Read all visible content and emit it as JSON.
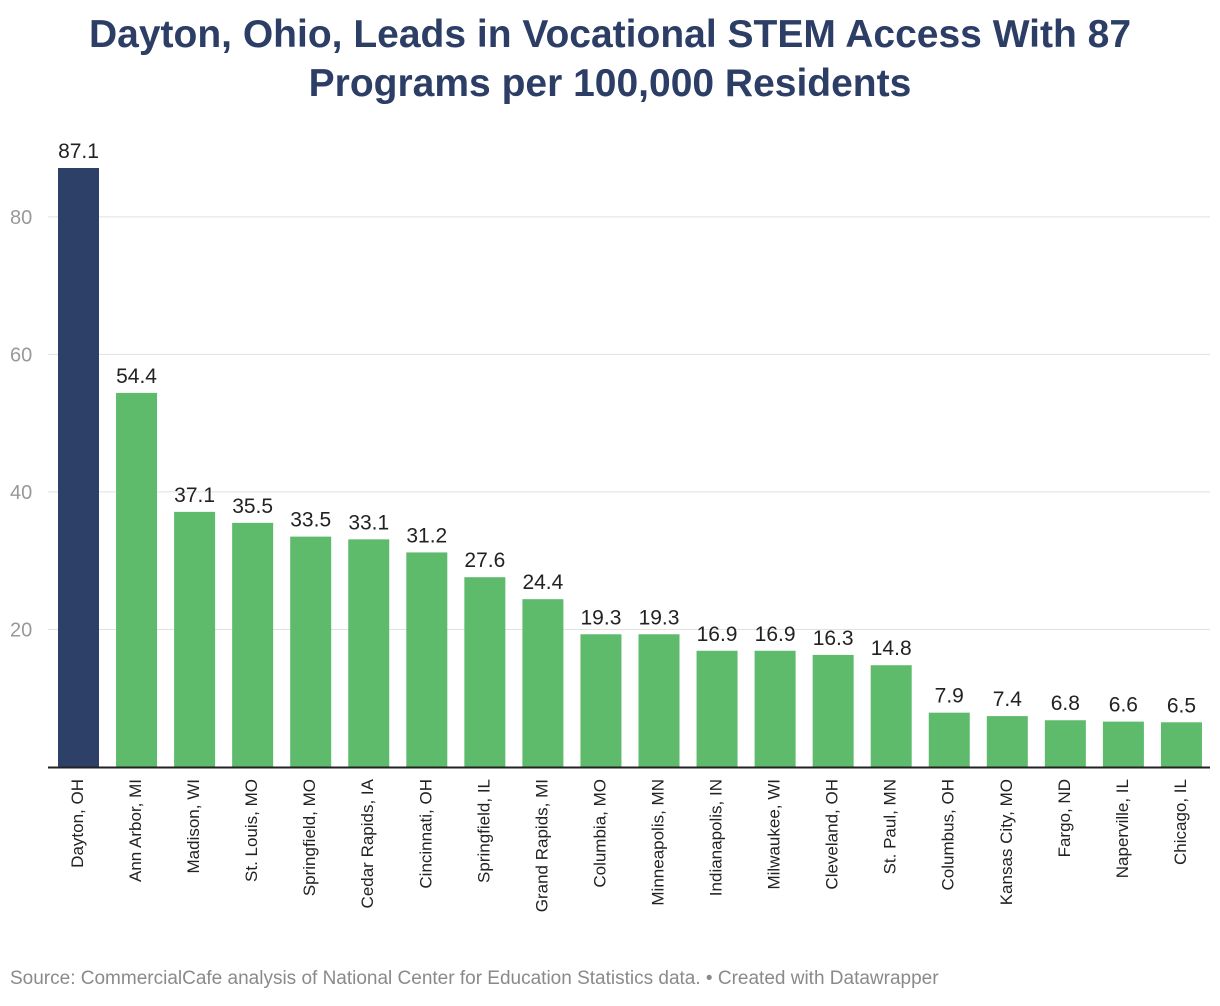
{
  "chart_data": {
    "type": "bar",
    "title": "Dayton, Ohio, Leads in Vocational STEM Access With 87 Programs per 100,000 Residents",
    "xlabel": "",
    "ylabel": "",
    "categories": [
      "Dayton, OH",
      "Ann Arbor, MI",
      "Madison, WI",
      "St. Louis, MO",
      "Springfield, MO",
      "Cedar Rapids, IA",
      "Cincinnati, OH",
      "Springfield, IL",
      "Grand Rapids, MI",
      "Columbia, MO",
      "Minneapolis, MN",
      "Indianapolis, IN",
      "Milwaukee, WI",
      "Cleveland, OH",
      "St. Paul, MN",
      "Columbus, OH",
      "Kansas City, MO",
      "Fargo, ND",
      "Naperville, IL",
      "Chicago, IL"
    ],
    "values": [
      87.1,
      54.4,
      37.1,
      35.5,
      33.5,
      33.1,
      31.2,
      27.6,
      24.4,
      19.3,
      19.3,
      16.9,
      16.9,
      16.3,
      14.8,
      7.9,
      7.4,
      6.8,
      6.6,
      6.5
    ],
    "value_labels": [
      "87.1",
      "54.4",
      "37.1",
      "35.5",
      "33.5",
      "33.1",
      "31.2",
      "27.6",
      "24.4",
      "19.3",
      "19.3",
      "16.9",
      "16.9",
      "16.3",
      "14.8",
      "7.9",
      "7.4",
      "6.8",
      "6.6",
      "6.5"
    ],
    "highlight_index": 0,
    "ylim": [
      0,
      87.1
    ],
    "yticks": [
      20,
      40,
      60,
      80
    ],
    "ytick_labels": [
      "20",
      "40",
      "60",
      "80"
    ],
    "grid": true,
    "legend": "none",
    "colors": {
      "highlight": "#2d4068",
      "bar": "#5dbb6b",
      "title": "#2c3e66",
      "grid": "#e1e1e1",
      "axis": "#222222",
      "tick_label": "#999999",
      "value_label": "#222222",
      "category_label": "#222222",
      "source": "#8a8a8a"
    }
  },
  "source_note": "Source: CommercialCafe analysis of National Center for Education Statistics data. • Created with Datawrapper"
}
